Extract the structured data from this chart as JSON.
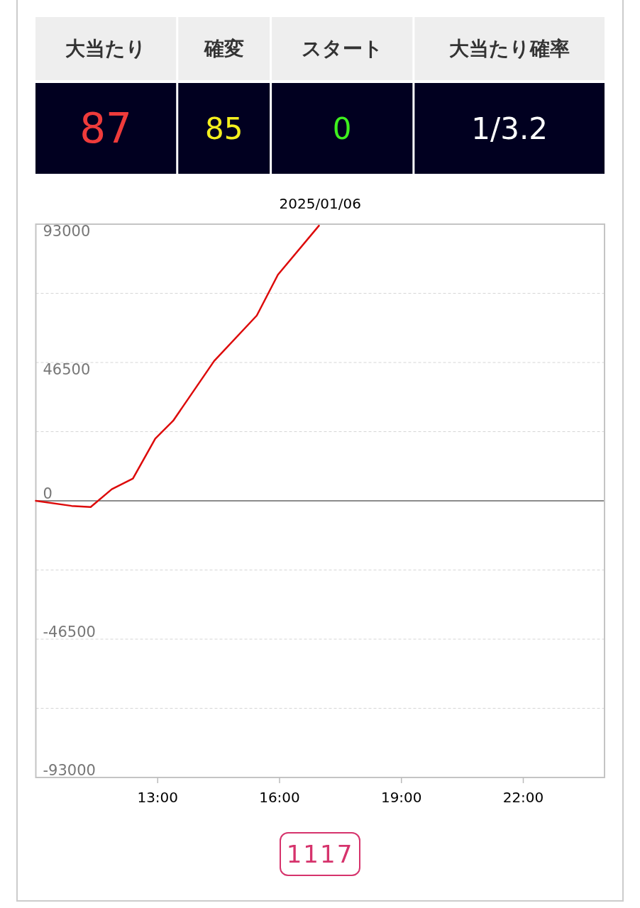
{
  "chart_data": [
    {
      "type": "other",
      "categories": [
        "大当たり",
        "確変",
        "スタート",
        "大当たり確率"
      ],
      "value_labels": [
        "87",
        "85",
        "0",
        "1/3.2"
      ]
    },
    {
      "type": "line",
      "title": "2025/01/06",
      "x": [
        10,
        10.88,
        11.35,
        11.87,
        12.39,
        12.94,
        13.38,
        14.39,
        15.44,
        15.96,
        16.97
      ],
      "series": [
        {
          "color": "#dd0a0a",
          "values": [
            0,
            -1700,
            -2100,
            3900,
            7500,
            20900,
            26900,
            47000,
            62300,
            76000,
            92500
          ]
        }
      ],
      "xlim": [
        10,
        24
      ],
      "xticks": [
        {
          "value": 13,
          "label": "13:00"
        },
        {
          "value": 16,
          "label": "16:00"
        },
        {
          "value": 19,
          "label": "19:00"
        },
        {
          "value": 22,
          "label": "22:00"
        }
      ],
      "ylim": [
        -93000,
        93000
      ],
      "yticks": [
        93000,
        {
          "value": 69750,
          "label": null
        },
        46500,
        {
          "value": 23250,
          "label": null
        },
        0,
        {
          "value": -23250,
          "label": null
        },
        -46500,
        {
          "value": -69750,
          "label": null
        },
        -93000
      ],
      "grid": "y",
      "ref_lines": [
        {
          "axis": "y",
          "value": 0,
          "color": "#8c8c8c"
        }
      ],
      "annotations": [
        "1117"
      ]
    }
  ]
}
